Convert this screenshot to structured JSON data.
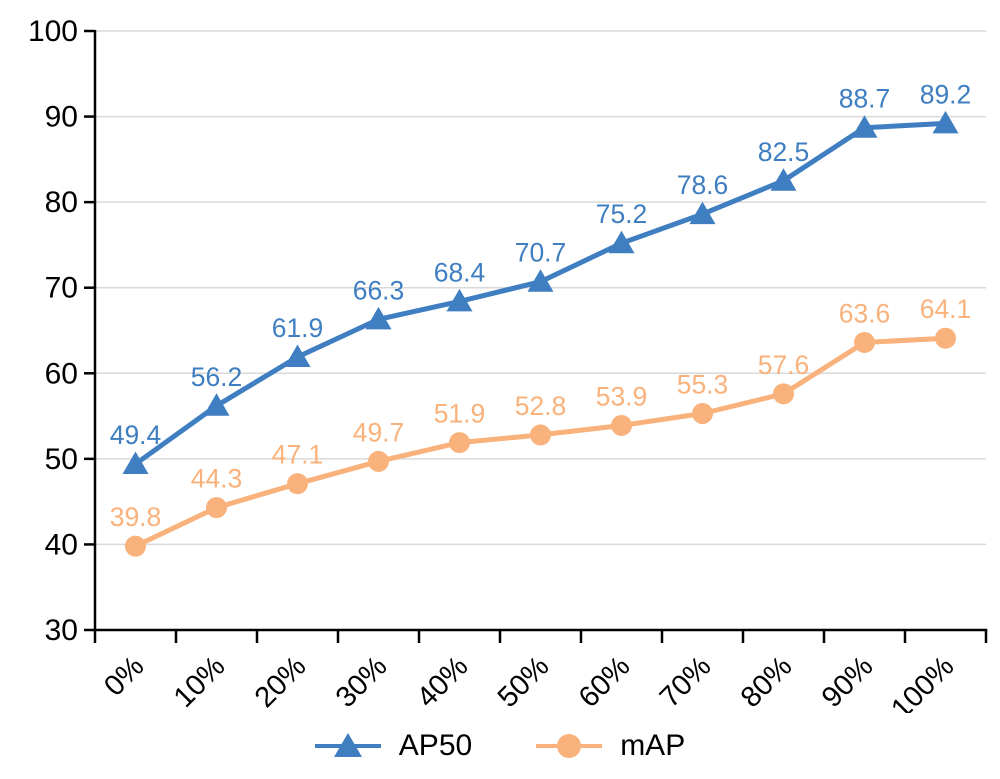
{
  "chart_data": {
    "type": "line",
    "title": "",
    "xlabel": "",
    "ylabel": "",
    "categories": [
      "0%",
      "10%",
      "20%",
      "30%",
      "40%",
      "50%",
      "60%",
      "70%",
      "80%",
      "90%",
      "100%"
    ],
    "series": [
      {
        "name": "AP50",
        "marker": "triangle",
        "color": "#3E7EC1",
        "values": [
          49.4,
          56.2,
          61.9,
          66.3,
          68.4,
          70.7,
          75.2,
          78.6,
          82.5,
          88.7,
          89.2
        ]
      },
      {
        "name": "mAP",
        "marker": "circle",
        "color": "#F9B27B",
        "values": [
          39.8,
          44.3,
          47.1,
          49.7,
          51.9,
          52.8,
          53.9,
          55.3,
          57.6,
          63.6,
          64.1
        ]
      }
    ],
    "ylim": [
      30,
      100
    ],
    "yticks": [
      30,
      40,
      50,
      60,
      70,
      80,
      90,
      100
    ],
    "grid": true,
    "gridline_color": "#D9D9D9",
    "axis_color": "#000000",
    "data_labels": true,
    "legend_position": "bottom"
  }
}
